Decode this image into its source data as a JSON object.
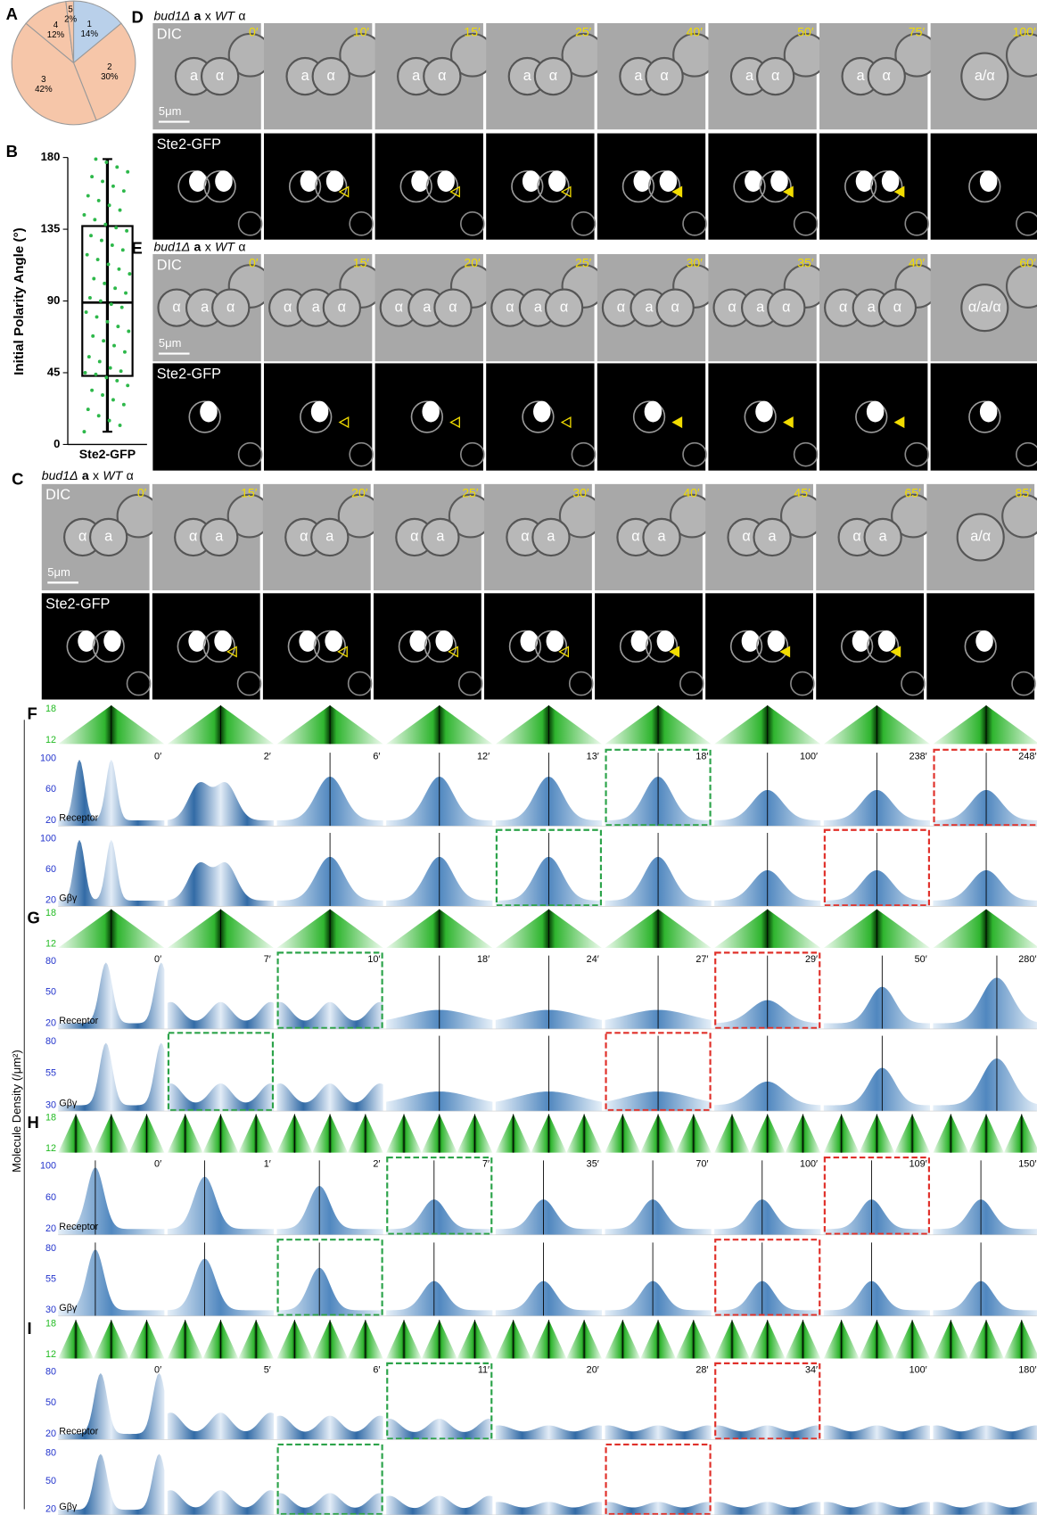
{
  "chart_data": [
    {
      "type": "pie",
      "panel": "A",
      "categories": [
        "1",
        "2",
        "3",
        "4",
        "5"
      ],
      "values": [
        14,
        30,
        42,
        12,
        2
      ],
      "value_labels": [
        "14%",
        "30%",
        "42%",
        "12%",
        "2%"
      ],
      "colors": [
        "#b9d0ea",
        "#f6c6a9",
        "#f6c6a9",
        "#f6c6a9",
        "#f6c6a9"
      ]
    },
    {
      "type": "box",
      "panel": "B",
      "ylabel": "Initial Polarity Angle (°)",
      "categories": [
        "Ste2-GFP"
      ],
      "box": {
        "min": 8,
        "q1": 43,
        "median": 89,
        "q3": 137,
        "max": 179
      },
      "points": [
        8,
        12,
        15,
        18,
        22,
        25,
        28,
        31,
        34,
        37,
        40,
        42,
        44,
        45,
        46,
        48,
        52,
        55,
        58,
        62,
        65,
        68,
        71,
        74,
        77,
        80,
        83,
        86,
        88,
        90,
        92,
        95,
        98,
        101,
        104,
        107,
        110,
        113,
        116,
        119,
        122,
        125,
        128,
        131,
        134,
        136,
        138,
        141,
        144,
        147,
        150,
        153,
        156,
        159,
        162,
        165,
        168,
        171,
        174,
        177,
        179
      ],
      "point_color": "#2db84a",
      "ylim": [
        0,
        180
      ],
      "yticks": [
        0,
        45,
        90,
        135,
        180
      ]
    }
  ],
  "micrographs": [
    {
      "panel": "D",
      "title": {
        "strain": "bud1Δ",
        "a": "a",
        "x": "x",
        "wt": "WT",
        "alpha": "α"
      },
      "channels": [
        "DIC",
        "Ste2-GFP"
      ],
      "scale_bar": "5μm",
      "frames": [
        {
          "time": "0′",
          "cells": [
            "a",
            "α"
          ]
        },
        {
          "time": "10′",
          "cells": [
            "a",
            "α"
          ]
        },
        {
          "time": "15′",
          "cells": [
            "a",
            "α"
          ]
        },
        {
          "time": "25′",
          "cells": [
            "a",
            "α"
          ]
        },
        {
          "time": "40′",
          "cells": [
            "a",
            "α"
          ]
        },
        {
          "time": "50′",
          "cells": [
            "a",
            "α"
          ]
        },
        {
          "time": "75′",
          "cells": [
            "a",
            "α"
          ]
        },
        {
          "time": "100′",
          "cells": [
            "a/α"
          ]
        }
      ]
    },
    {
      "panel": "E",
      "title": {
        "strain": "bud1Δ",
        "a": "a",
        "x": "x",
        "wt": "WT",
        "alpha": "α"
      },
      "channels": [
        "DIC",
        "Ste2-GFP"
      ],
      "scale_bar": "5μm",
      "frames": [
        {
          "time": "0′",
          "cells": [
            "α",
            "a",
            "α"
          ]
        },
        {
          "time": "15′",
          "cells": [
            "α",
            "a",
            "α"
          ]
        },
        {
          "time": "20′",
          "cells": [
            "α",
            "a",
            "α"
          ]
        },
        {
          "time": "25′",
          "cells": [
            "α",
            "a",
            "α"
          ]
        },
        {
          "time": "30′",
          "cells": [
            "α",
            "a",
            "α"
          ]
        },
        {
          "time": "35′",
          "cells": [
            "α",
            "a",
            "α"
          ]
        },
        {
          "time": "40′",
          "cells": [
            "α",
            "a",
            "α"
          ]
        },
        {
          "time": "60′",
          "cells": [
            "α/a/α"
          ]
        }
      ]
    },
    {
      "panel": "C",
      "title": {
        "strain": "bud1Δ",
        "a": "a",
        "x": "x",
        "wt": "WT",
        "alpha": "α"
      },
      "channels": [
        "DIC",
        "Ste2-GFP"
      ],
      "scale_bar": "5μm",
      "frames": [
        {
          "time": "0′",
          "cells": [
            "α",
            "a"
          ]
        },
        {
          "time": "15′",
          "cells": [
            "α",
            "a"
          ]
        },
        {
          "time": "20′",
          "cells": [
            "α",
            "a"
          ]
        },
        {
          "time": "25′",
          "cells": [
            "α",
            "a"
          ]
        },
        {
          "time": "30′",
          "cells": [
            "α",
            "a"
          ]
        },
        {
          "time": "40′",
          "cells": [
            "α",
            "a"
          ]
        },
        {
          "time": "45′",
          "cells": [
            "α",
            "a"
          ]
        },
        {
          "time": "65′",
          "cells": [
            "α",
            "a"
          ]
        },
        {
          "time": "85′",
          "cells": [
            "a/α"
          ]
        }
      ]
    }
  ],
  "simulations": {
    "ylabel": "Molecule Density (/μm²)",
    "panels": [
      {
        "panel": "F",
        "strip_ticks": [
          18,
          12
        ],
        "times": [
          "0′",
          "2′",
          "6′",
          "12′",
          "13′",
          "18′",
          "100′",
          "238′",
          "248′"
        ],
        "rows": [
          {
            "name": "Receptor",
            "ticks": [
              100,
              60,
              20
            ]
          },
          {
            "name": "Gβγ",
            "ticks": [
              100,
              60,
              20
            ]
          }
        ]
      },
      {
        "panel": "G",
        "strip_ticks": [
          18,
          12
        ],
        "times": [
          "0′",
          "7′",
          "10′",
          "18′",
          "24′",
          "27′",
          "29′",
          "50′",
          "280′"
        ],
        "rows": [
          {
            "name": "Receptor",
            "ticks": [
              80,
              50,
              20
            ]
          },
          {
            "name": "Gβγ",
            "ticks": [
              80,
              55,
              30
            ]
          }
        ]
      },
      {
        "panel": "H",
        "strip_ticks": [
          18,
          12
        ],
        "times": [
          "0′",
          "1′",
          "2′",
          "7′",
          "35′",
          "70′",
          "100′",
          "109′",
          "150′"
        ],
        "rows": [
          {
            "name": "Receptor",
            "ticks": [
              100,
              60,
              20
            ]
          },
          {
            "name": "Gβγ",
            "ticks": [
              80,
              55,
              30
            ]
          }
        ]
      },
      {
        "panel": "I",
        "strip_ticks": [
          18,
          12
        ],
        "times": [
          "0′",
          "5′",
          "6′",
          "11′",
          "20′",
          "28′",
          "34′",
          "100′",
          "180′"
        ],
        "rows": [
          {
            "name": "Receptor",
            "ticks": [
              80,
              50,
              20
            ]
          },
          {
            "name": "Gβγ",
            "ticks": [
              80,
              50,
              20
            ]
          }
        ]
      }
    ]
  }
}
